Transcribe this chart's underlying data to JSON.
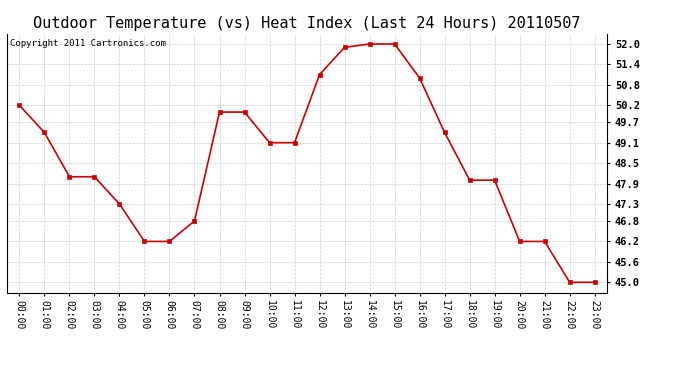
{
  "title": "Outdoor Temperature (vs) Heat Index (Last 24 Hours) 20110507",
  "copyright": "Copyright 2011 Cartronics.com",
  "x_labels": [
    "00:00",
    "01:00",
    "02:00",
    "03:00",
    "04:00",
    "05:00",
    "06:00",
    "07:00",
    "08:00",
    "09:00",
    "10:00",
    "11:00",
    "12:00",
    "13:00",
    "14:00",
    "15:00",
    "16:00",
    "17:00",
    "18:00",
    "19:00",
    "20:00",
    "21:00",
    "22:00",
    "23:00"
  ],
  "y_values": [
    50.2,
    49.4,
    48.1,
    48.1,
    47.3,
    46.2,
    46.2,
    46.8,
    50.0,
    50.0,
    49.1,
    49.1,
    51.1,
    51.9,
    52.0,
    52.0,
    51.0,
    49.4,
    48.0,
    48.0,
    46.2,
    46.2,
    45.0,
    45.0
  ],
  "line_color": "#cc0000",
  "marker": "s",
  "marker_size": 3,
  "bg_color": "#ffffff",
  "plot_bg_color": "#ffffff",
  "grid_color": "#cccccc",
  "ylim_min": 44.7,
  "ylim_max": 52.3,
  "yticks": [
    45.0,
    45.6,
    46.2,
    46.8,
    47.3,
    47.9,
    48.5,
    49.1,
    49.7,
    50.2,
    50.8,
    51.4,
    52.0
  ],
  "title_fontsize": 11,
  "copyright_fontsize": 6.5,
  "tick_fontsize": 7.5,
  "xlabel_fontsize": 7
}
